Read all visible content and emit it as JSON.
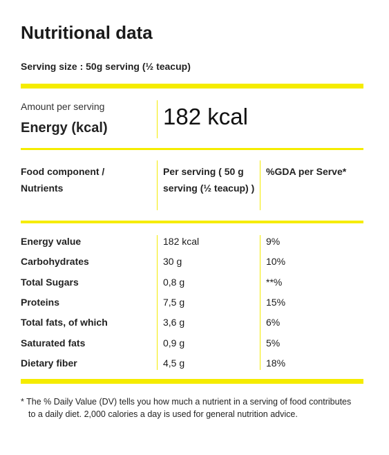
{
  "header": {
    "title": "Nutritional data",
    "serving_size": "Serving size : 50g serving (½ teacup)"
  },
  "energy": {
    "caption": "Amount per serving",
    "label": "Energy (kcal)",
    "value": "182 kcal"
  },
  "table": {
    "headers": [
      "Food component / Nutrients",
      "Per serving ( 50 g serving (½ teacup) )",
      "%GDA per Serve*"
    ],
    "rows": [
      [
        "Energy value",
        "182 kcal",
        "9%"
      ],
      [
        "Carbohydrates",
        "30 g",
        "10%"
      ],
      [
        "Total Sugars",
        "0,8 g",
        "**%"
      ],
      [
        "Proteins",
        "7,5 g",
        "15%"
      ],
      [
        "Total fats, of which",
        "3,6 g",
        "6%"
      ],
      [
        "Saturated fats",
        "0,9 g",
        "5%"
      ],
      [
        "Dietary fiber",
        "4,5 g",
        "18%"
      ]
    ]
  },
  "footnote": "* The % Daily Value (DV) tells you how much a nutrient in a serving of food contributes to a daily diet. 2,000 calories a day is used for general nutrition advice."
}
